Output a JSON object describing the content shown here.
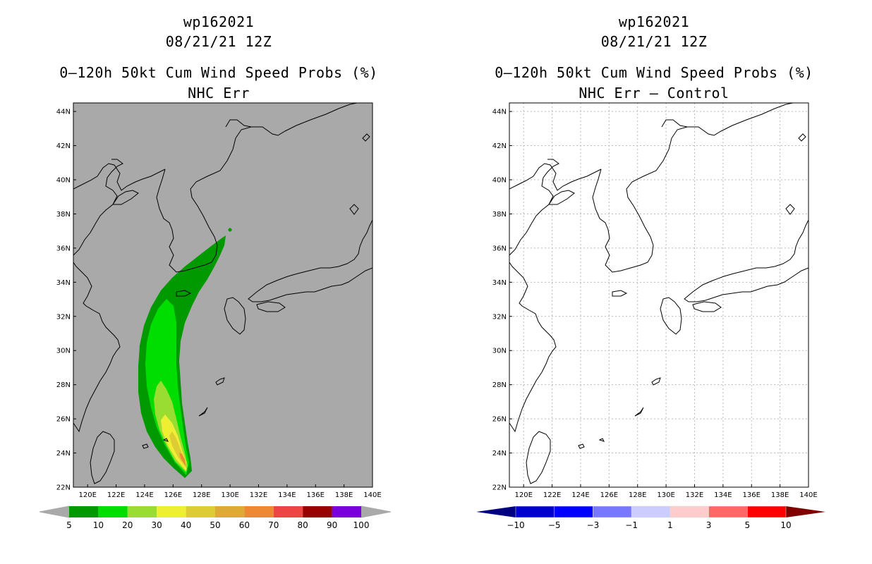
{
  "panels": [
    {
      "storm_id": "wp162021",
      "datetime": "08/21/21 12Z",
      "title_line1": "0–120h 50kt Cum Wind Speed Probs (%)",
      "title_line2": "NHC Err"
    },
    {
      "storm_id": "wp162021",
      "datetime": "08/21/21 12Z",
      "title_line1": "0–120h 50kt Cum Wind Speed Probs (%)",
      "title_line2": "NHC Err – Control"
    }
  ],
  "chart_data": [
    {
      "type": "heatmap",
      "title": "0–120h 50kt Cum Wind Speed Probs (%) NHC Err",
      "background": "#a9a9a9",
      "grid": false,
      "xlim": [
        119,
        140
      ],
      "ylim": [
        22,
        44.5
      ],
      "x_ticks": [
        "120E",
        "122E",
        "124E",
        "126E",
        "128E",
        "130E",
        "132E",
        "134E",
        "136E",
        "138E",
        "140E"
      ],
      "y_ticks": [
        "22N",
        "24N",
        "26N",
        "28N",
        "30N",
        "32N",
        "34N",
        "36N",
        "38N",
        "40N",
        "42N",
        "44N"
      ],
      "contour_levels": [
        5,
        10,
        20,
        30,
        40,
        50,
        60,
        70,
        80,
        90,
        100
      ],
      "level_colors": [
        "#009900",
        "#00dd00",
        "#99dd33",
        "#eeee33",
        "#ddcc33",
        "#ddaa33",
        "#ee8833",
        "#ee4444",
        "#990000",
        "#7700dd"
      ],
      "colorbar_labels": [
        "5",
        "10",
        "20",
        "30",
        "40",
        "50",
        "60",
        "70",
        "80",
        "90",
        "100"
      ],
      "max_probability_location": [
        126.9,
        23.0
      ]
    },
    {
      "type": "heatmap",
      "title": "0–120h 50kt Cum Wind Speed Probs (%) NHC Err – Control",
      "background": "#ffffff",
      "grid": true,
      "xlim": [
        119,
        140
      ],
      "ylim": [
        22,
        44.5
      ],
      "x_ticks": [
        "120E",
        "122E",
        "124E",
        "126E",
        "128E",
        "130E",
        "132E",
        "134E",
        "136E",
        "138E",
        "140E"
      ],
      "y_ticks": [
        "22N",
        "24N",
        "26N",
        "28N",
        "30N",
        "32N",
        "34N",
        "36N",
        "38N",
        "40N",
        "42N",
        "44N"
      ],
      "contour_levels": [
        -10,
        -5,
        -3,
        -1,
        1,
        3,
        5,
        10
      ],
      "level_colors": [
        "#0000cc",
        "#0000ff",
        "#7777ff",
        "#ccccff",
        "#ffffff",
        "#ffcccc",
        "#ff6666",
        "#ff0000"
      ],
      "end_colors": [
        "#000080",
        "#800000"
      ],
      "colorbar_labels": [
        "−10",
        "−5",
        "−3",
        "−1",
        "1",
        "3",
        "5",
        "10"
      ]
    }
  ]
}
